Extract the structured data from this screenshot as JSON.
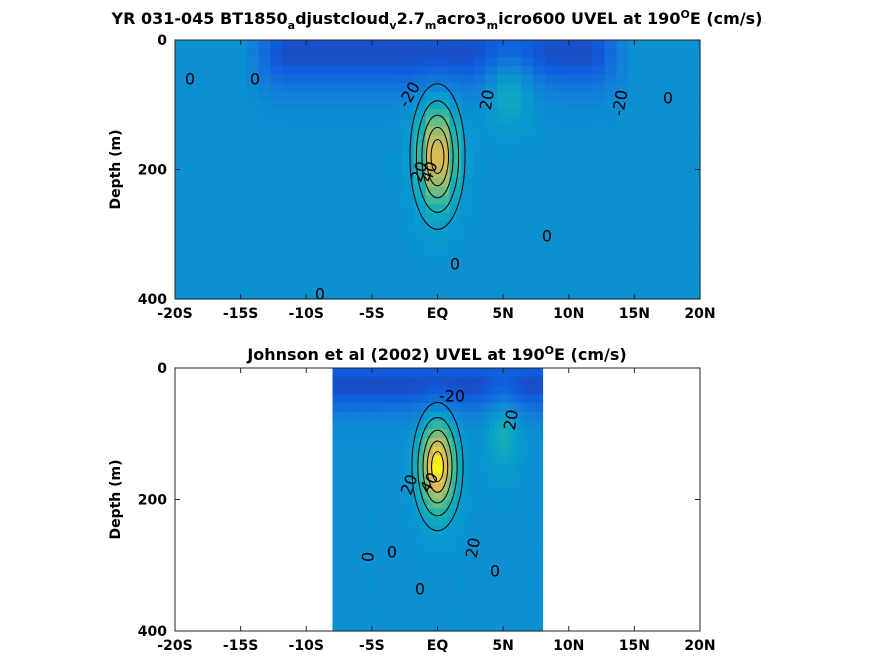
{
  "chart_data": [
    {
      "type": "heatmap",
      "title": {
        "main": "YR 031-045 BT1850",
        "s1": "a",
        "t1": "djustcloud",
        "s2": "v",
        "t2": "2.7",
        "s3": "m",
        "t3": "acro3",
        "s4": "m",
        "t4": "icro600 UVEL at 190",
        "sup": "O",
        "t5": "E (cm/s)"
      },
      "ylabel": "Depth (m)",
      "xticks": [
        "-20S",
        "-15S",
        "-10S",
        "-5S",
        "EQ",
        "5N",
        "10N",
        "15N",
        "20N"
      ],
      "xtick_values": [
        -20,
        -15,
        -10,
        -5,
        0,
        5,
        10,
        15,
        20
      ],
      "yticks": [
        "0",
        "200",
        "400"
      ],
      "ytick_values": [
        0,
        200,
        400
      ],
      "xlim": [
        -20,
        20
      ],
      "ylim": [
        400,
        0
      ],
      "data_lon_range": [
        -20,
        20
      ],
      "contour_labels": [
        "0",
        "0",
        "-20",
        "20",
        "-20",
        "0",
        "20",
        "40",
        "0",
        "0",
        "0"
      ],
      "features": {
        "background": 0,
        "undercurrent": {
          "lat": 0,
          "depth": 180,
          "lat_width": 1.4,
          "depth_width": 75,
          "core": 70
        },
        "north_jet": {
          "lat": 5.5,
          "depth": 70,
          "lat_width": 1.8,
          "depth_width": 55,
          "core": 25
        },
        "westward_band": {
          "lat_from": -12,
          "lat_to": 12,
          "depth": 20,
          "depth_width": 60,
          "core": -30
        }
      },
      "color_range": [
        -40,
        80
      ]
    },
    {
      "type": "heatmap",
      "title": {
        "main": "Johnson et al (2002) UVEL at 190",
        "sup": "O",
        "t5": "E (cm/s)"
      },
      "ylabel": "Depth (m)",
      "xticks": [
        "-20S",
        "-15S",
        "-10S",
        "-5S",
        "EQ",
        "5N",
        "10N",
        "15N",
        "20N"
      ],
      "xtick_values": [
        -20,
        -15,
        -10,
        -5,
        0,
        5,
        10,
        15,
        20
      ],
      "yticks": [
        "0",
        "200",
        "400"
      ],
      "ytick_values": [
        0,
        200,
        400
      ],
      "xlim": [
        -20,
        20
      ],
      "ylim": [
        400,
        0
      ],
      "data_lon_range": [
        -8,
        8
      ],
      "contour_labels": [
        "-20",
        "20",
        "40",
        "20",
        "0",
        "0",
        "20",
        "0",
        "0"
      ],
      "features": {
        "background": 0,
        "undercurrent": {
          "lat": 0,
          "depth": 150,
          "lat_width": 1.3,
          "depth_width": 65,
          "core": 80
        },
        "north_jet": {
          "lat": 5.0,
          "depth": 90,
          "lat_width": 1.2,
          "depth_width": 60,
          "core": 20
        },
        "westward_band": {
          "lat_from": -8,
          "lat_to": 8,
          "depth": 25,
          "depth_width": 45,
          "core": -30
        }
      },
      "color_range": [
        -40,
        80
      ]
    }
  ]
}
